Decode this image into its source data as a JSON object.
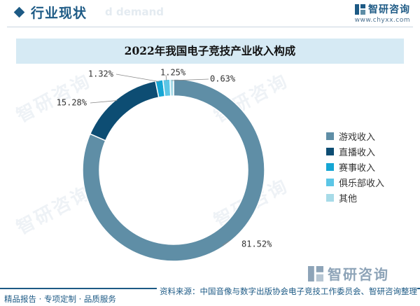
{
  "header": {
    "title": "行业现状",
    "ghost_text": "d demand"
  },
  "brand": {
    "name": "智研咨询",
    "site": "www.chyxx.com"
  },
  "watermark_text": "智研咨询",
  "chart_data": {
    "type": "pie",
    "style": "donut",
    "title": "2022年我国电子竞技产业收入构成",
    "legend_position": "right",
    "slices": [
      {
        "name": "游戏收入",
        "value": 81.52,
        "label": "81.52%",
        "color": "#5f8ea6"
      },
      {
        "name": "直播收入",
        "value": 15.28,
        "label": "15.28%",
        "color": "#0d4d73"
      },
      {
        "name": "赛事收入",
        "value": 1.32,
        "label": "1.32%",
        "color": "#15a6d4"
      },
      {
        "name": "俱乐部收入",
        "value": 1.25,
        "label": "1.25%",
        "color": "#5cc6e6"
      },
      {
        "name": "其他",
        "value": 0.63,
        "label": "0.63%",
        "color": "#a7dbe8"
      }
    ]
  },
  "footer": {
    "left_text": "精品报告 · 专项定制 · 品质服务",
    "source_text": "资料来源：中国音像与数字出版协会电子竞技工作委员会、智研咨询整理"
  }
}
